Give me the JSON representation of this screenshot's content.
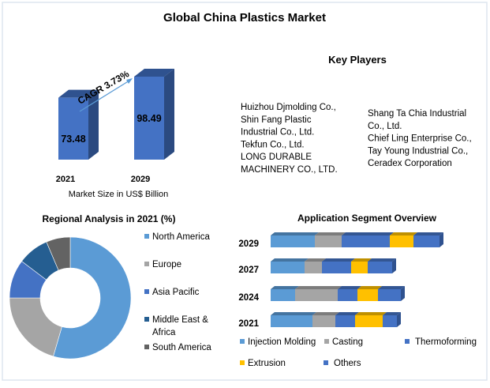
{
  "title": "Global China Plastics Market",
  "key_players": {
    "heading": "Key Players",
    "col1": [
      "Huizhou Djmolding Co.,",
      "Shin Fang Plastic",
      "Industrial Co., Ltd.",
      "Tekfun Co., Ltd.",
      "LONG DURABLE",
      "MACHINERY CO., LTD."
    ],
    "col2": [
      "Shang Ta Chia Industrial",
      "Co., Ltd.",
      "Chief Ling Enterprise Co.,",
      "Tay Young Industrial Co.,",
      "Ceradex Corporation"
    ]
  },
  "chart_data": [
    {
      "type": "bar",
      "title": "",
      "categories": [
        "2021",
        "2029"
      ],
      "values": [
        73.48,
        98.49
      ],
      "data_labels": [
        "73.48",
        "98.49"
      ],
      "xlabel": "Market Size in US$ Billion",
      "annotation": "CAGR 3.73%",
      "color": "#4472C4"
    },
    {
      "type": "pie",
      "title": "Regional Analysis in 2021 (%)",
      "donut": true,
      "legend": "right",
      "labels": [
        "North America",
        "Europe",
        "Asia Pacific",
        "Middle East & Africa",
        "South America"
      ],
      "legend_lines": [
        [
          "North America"
        ],
        [
          "Europe"
        ],
        [
          "Asia Pacific"
        ],
        [
          "Middle East &",
          "Africa"
        ],
        [
          "South America"
        ]
      ],
      "values": [
        54.5,
        20.5,
        10.3,
        8.3,
        6.4
      ],
      "colors": [
        "#5B9BD5",
        "#A5A5A5",
        "#4472C4",
        "#255E91",
        "#636363"
      ]
    },
    {
      "type": "bar",
      "orientation": "horizontal",
      "stacked": true,
      "title": "Application Segment Overview",
      "categories": [
        "2029",
        "2027",
        "2024",
        "2021"
      ],
      "legend": "bottom",
      "series": [
        {
          "name": "Injection Molding",
          "color": "#5B9BD5",
          "values": [
            56,
            43,
            31,
            53
          ]
        },
        {
          "name": "Casting",
          "color": "#A5A5A5",
          "values": [
            34,
            22,
            54,
            29
          ]
        },
        {
          "name": "Thermoforming",
          "color": "#4472C4",
          "values": [
            61,
            37,
            25,
            25
          ]
        },
        {
          "name": "Extrusion",
          "color": "#FFC000",
          "values": [
            30,
            21,
            26,
            35
          ]
        },
        {
          "name": "Others",
          "color": "#4472C4",
          "values": [
            33,
            31,
            29,
            18
          ]
        }
      ]
    }
  ]
}
